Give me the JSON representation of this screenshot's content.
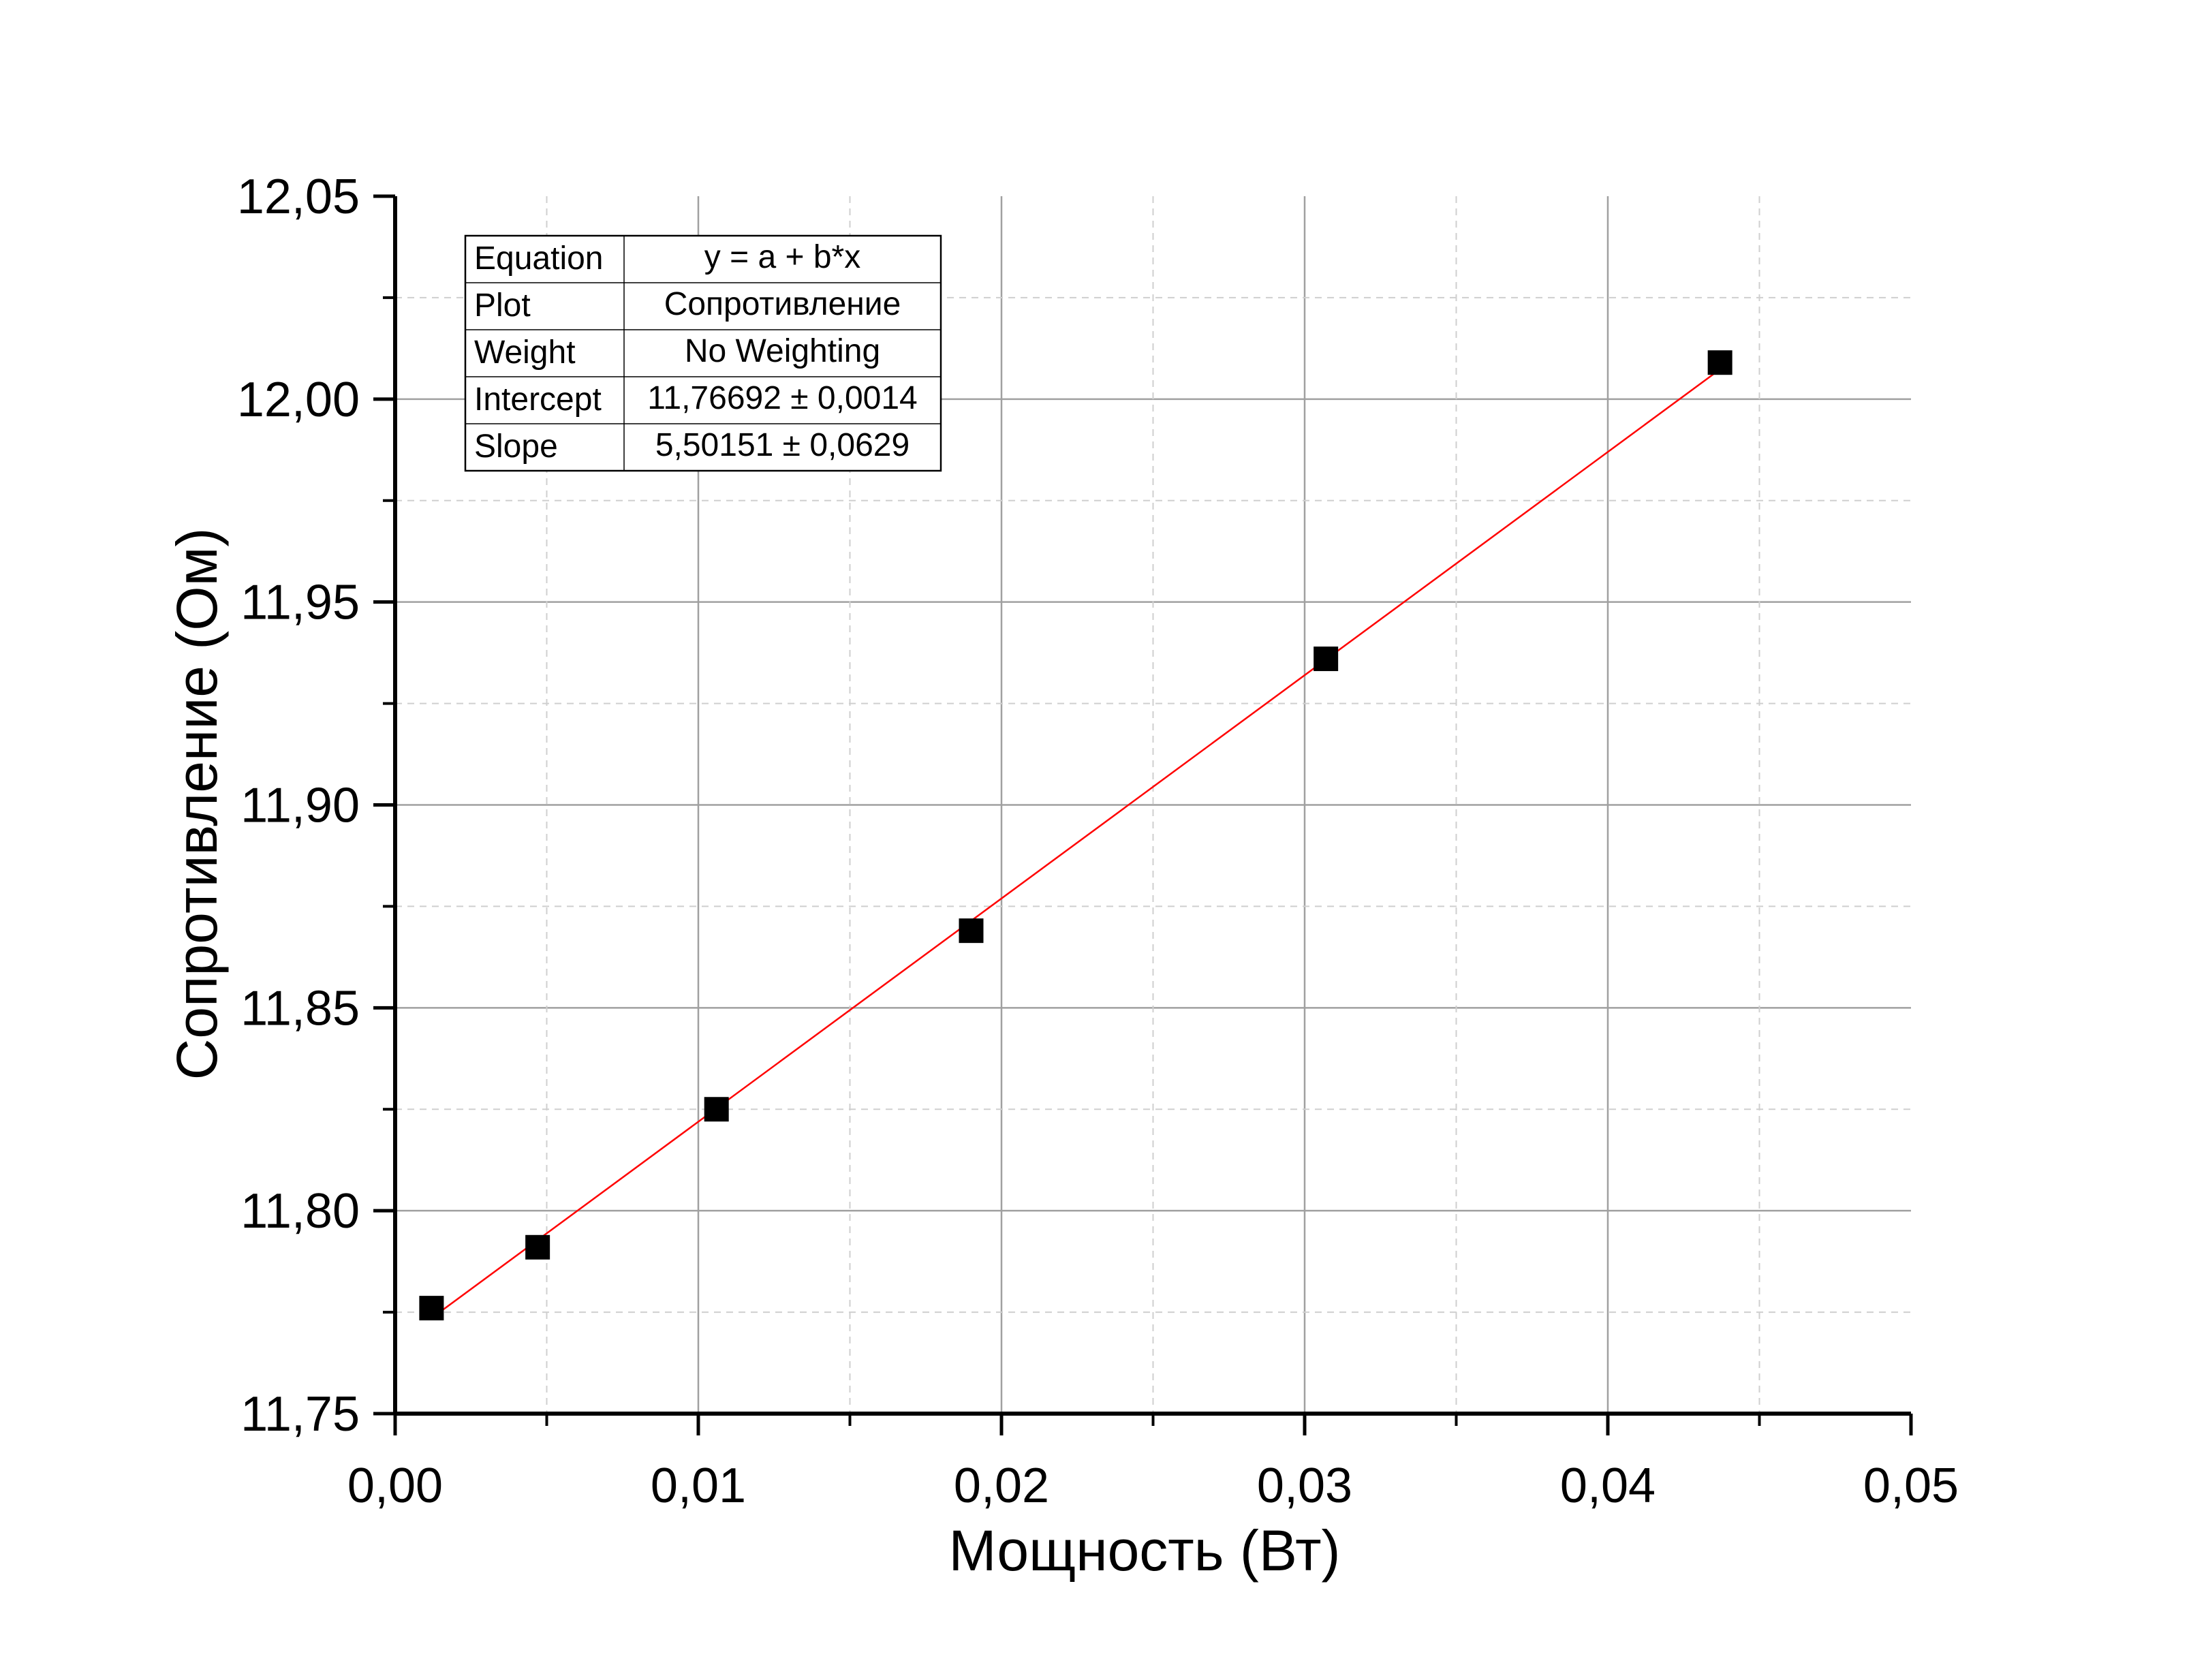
{
  "chart_data": {
    "type": "scatter",
    "xlabel": "Мощность (Вт)",
    "ylabel": "Сопротивление (Ом)",
    "xlim": [
      0.0,
      0.05
    ],
    "ylim": [
      11.75,
      12.05
    ],
    "x_ticks": [
      "0,00",
      "0,01",
      "0,02",
      "0,03",
      "0,04",
      "0,05"
    ],
    "x_tick_values": [
      0.0,
      0.01,
      0.02,
      0.03,
      0.04,
      0.05
    ],
    "x_minor_values": [
      0.005,
      0.015,
      0.025,
      0.035,
      0.045
    ],
    "y_ticks": [
      "11,75",
      "11,80",
      "11,85",
      "11,90",
      "11,95",
      "12,00",
      "12,05"
    ],
    "y_tick_values": [
      11.75,
      11.8,
      11.85,
      11.9,
      11.95,
      12.0,
      12.05
    ],
    "y_minor_values": [
      11.775,
      11.825,
      11.875,
      11.925,
      11.975,
      12.025
    ],
    "grid": true,
    "series": [
      {
        "marker": "square",
        "color": "#000000",
        "x": [
          0.0012,
          0.0047,
          0.0106,
          0.019,
          0.0307,
          0.0437
        ],
        "y": [
          11.776,
          11.791,
          11.825,
          11.869,
          11.936,
          12.009
        ]
      }
    ],
    "fit": {
      "color": "#ff0000",
      "intercept": 11.76692,
      "slope": 5.50151,
      "x_range": [
        0.0012,
        0.0437
      ]
    },
    "fit_table": {
      "rows": [
        {
          "label": "Equation",
          "value": "y = a + b*x"
        },
        {
          "label": "Plot",
          "value": "Сопротивление"
        },
        {
          "label": "Weight",
          "value": "No Weighting"
        },
        {
          "label": "Intercept",
          "value": "11,76692 ± 0,0014"
        },
        {
          "label": "Slope",
          "value": "5,50151 ± 0,0629"
        }
      ]
    }
  }
}
